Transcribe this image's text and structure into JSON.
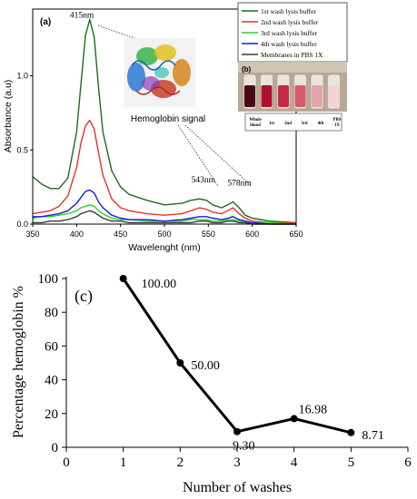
{
  "chart_data": [
    {
      "type": "line",
      "panel_label": "(a)",
      "xlabel": "Wavelenght (nm)",
      "ylabel": "Absorbance (a.u)",
      "xlim": [
        350,
        650
      ],
      "ylim": [
        0,
        1.45
      ],
      "x_ticks": [
        "350",
        "400",
        "450",
        "500",
        "550",
        "600",
        "650"
      ],
      "y_ticks": [
        "0.0",
        "0.5",
        "1.0"
      ],
      "x": [
        350,
        360,
        370,
        380,
        390,
        400,
        405,
        410,
        415,
        420,
        425,
        430,
        440,
        450,
        460,
        480,
        500,
        520,
        530,
        540,
        548,
        555,
        565,
        572,
        578,
        585,
        592,
        600,
        620,
        650
      ],
      "series": [
        {
          "name": "1st  wash lysis buffer",
          "color": "#1e6b1e",
          "values": [
            0.32,
            0.27,
            0.24,
            0.24,
            0.31,
            0.62,
            0.95,
            1.27,
            1.38,
            1.26,
            0.92,
            0.62,
            0.36,
            0.25,
            0.2,
            0.16,
            0.13,
            0.14,
            0.16,
            0.17,
            0.16,
            0.13,
            0.11,
            0.13,
            0.15,
            0.11,
            0.06,
            0.04,
            0.02,
            0.01
          ]
        },
        {
          "name": "2nd wash lysis buffer",
          "color": "#e8322c",
          "values": [
            0.07,
            0.08,
            0.09,
            0.12,
            0.19,
            0.38,
            0.55,
            0.66,
            0.7,
            0.64,
            0.48,
            0.33,
            0.17,
            0.11,
            0.09,
            0.07,
            0.06,
            0.07,
            0.09,
            0.11,
            0.1,
            0.08,
            0.07,
            0.09,
            0.11,
            0.07,
            0.04,
            0.02,
            0.01,
            0.01
          ]
        },
        {
          "name": "3rd  wash lysis buffer",
          "color": "#2bd42b",
          "values": [
            0.04,
            0.05,
            0.05,
            0.06,
            0.07,
            0.09,
            0.11,
            0.12,
            0.13,
            0.12,
            0.09,
            0.07,
            0.04,
            0.03,
            0.03,
            0.02,
            0.02,
            0.02,
            0.03,
            0.03,
            0.03,
            0.02,
            0.02,
            0.03,
            0.03,
            0.02,
            0.01,
            0.01,
            0.01,
            0.0
          ]
        },
        {
          "name": "4th  wash lysis buffer",
          "color": "#1a1ad6",
          "values": [
            0.05,
            0.05,
            0.06,
            0.07,
            0.09,
            0.14,
            0.18,
            0.22,
            0.23,
            0.21,
            0.15,
            0.11,
            0.06,
            0.04,
            0.03,
            0.03,
            0.02,
            0.03,
            0.04,
            0.05,
            0.05,
            0.04,
            0.03,
            0.04,
            0.05,
            0.03,
            0.02,
            0.01,
            0.0,
            0.0
          ]
        },
        {
          "name": "Membranes in PBS 1X",
          "color": "#3a3a3a",
          "values": [
            0.01,
            0.01,
            0.02,
            0.02,
            0.03,
            0.05,
            0.07,
            0.08,
            0.09,
            0.08,
            0.06,
            0.04,
            0.02,
            0.02,
            0.01,
            0.01,
            0.01,
            0.01,
            0.01,
            0.02,
            0.02,
            0.01,
            0.01,
            0.02,
            0.02,
            0.01,
            0.01,
            0.0,
            0.0,
            0.0
          ]
        }
      ],
      "peak_labels": [
        {
          "text": "415nm",
          "x": 415,
          "y": 1.38
        },
        {
          "text": "543nm",
          "x": 543,
          "y": 0.17
        },
        {
          "text": "578nm",
          "x": 578,
          "y": 0.15
        }
      ],
      "inset": {
        "caption": "Hemoglobin signal",
        "photo_label": "(b)",
        "tube_labels": [
          "Whole blood",
          "1st",
          "2nd",
          "3rd",
          "4th",
          "PBS 1X"
        ],
        "tube_colors": [
          "#4a0a14",
          "#b01030",
          "#c42a45",
          "#d85a6e",
          "#e6a3ad",
          "#f2d3d6"
        ]
      },
      "legend_position": "top-right"
    },
    {
      "type": "line",
      "panel_label": "(c)",
      "xlabel": "Number of washes",
      "ylabel": "Percentage hemoglobin %",
      "xlim": [
        0,
        6
      ],
      "ylim": [
        0,
        100
      ],
      "x_ticks": [
        "0",
        "1",
        "2",
        "3",
        "4",
        "5",
        "6"
      ],
      "y_ticks": [
        "0",
        "20",
        "40",
        "60",
        "80",
        "100"
      ],
      "x": [
        1,
        2,
        3,
        4,
        5
      ],
      "values": [
        100.0,
        50.0,
        9.3,
        16.98,
        8.71
      ],
      "data_labels": [
        "100.00",
        "50.00",
        "9.30",
        "16.98",
        "8.71"
      ]
    }
  ]
}
